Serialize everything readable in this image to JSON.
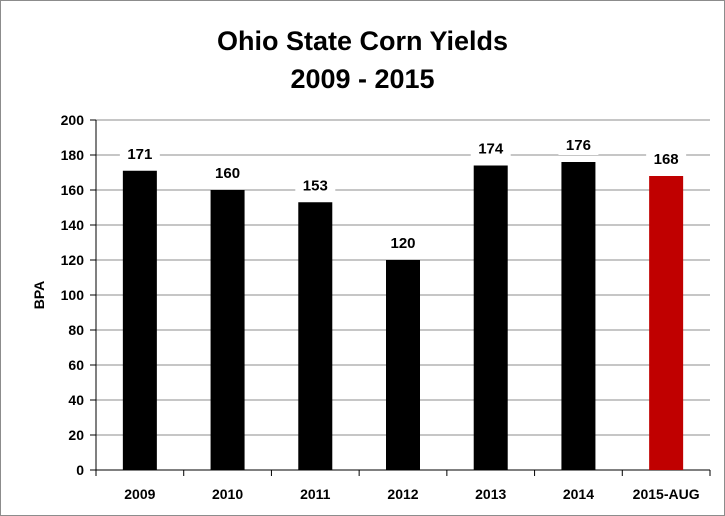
{
  "chart_data": {
    "type": "bar",
    "title": "Ohio State Corn Yields",
    "subtitle": "2009 - 2015",
    "xlabel": "",
    "ylabel": "BPA",
    "categories": [
      "2009",
      "2010",
      "2011",
      "2012",
      "2013",
      "2014",
      "2015-AUG"
    ],
    "values": [
      171,
      160,
      153,
      120,
      174,
      176,
      168
    ],
    "data_labels": [
      "171",
      "160",
      "153",
      "120",
      "174",
      "176",
      "168"
    ],
    "ylim": [
      0,
      200
    ],
    "yticks": [
      0,
      20,
      40,
      60,
      80,
      100,
      120,
      140,
      160,
      180,
      200
    ],
    "grid": true,
    "legend": "none",
    "colors": {
      "default": "#000000",
      "highlight": "#c00000",
      "highlight_index": 6
    }
  }
}
